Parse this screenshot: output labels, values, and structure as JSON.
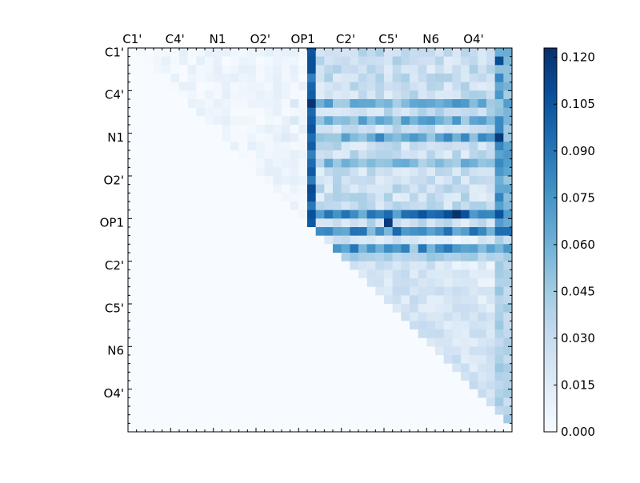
{
  "chart_data": {
    "type": "heatmap",
    "title": "",
    "xlabel": "",
    "ylabel": "",
    "n_cells": 45,
    "x_tick_labels": [
      "C1'",
      "C4'",
      "N1",
      "O2'",
      "OP1",
      "C2'",
      "C5'",
      "N6",
      "O4'"
    ],
    "y_tick_labels": [
      "C1'",
      "C4'",
      "N1",
      "O2'",
      "OP1",
      "C2'",
      "C5'",
      "N6",
      "O4'"
    ],
    "tick_label_indices": [
      0,
      5,
      10,
      15,
      20,
      25,
      30,
      35,
      40
    ],
    "colorbar": {
      "ticks": [
        "0.000",
        "0.015",
        "0.030",
        "0.045",
        "0.060",
        "0.075",
        "0.090",
        "0.105",
        "0.120"
      ],
      "range": [
        0.0,
        0.123
      ],
      "colormap": "Blues",
      "low_color": "#f7fbff",
      "high_color": "#08306b"
    },
    "triangle": "upper",
    "grid": false,
    "legend": "colorbar-right",
    "hot_rows": [
      {
        "row": 6,
        "strength": 0.07
      },
      {
        "row": 8,
        "strength": 0.07
      },
      {
        "row": 10,
        "strength": 0.075
      },
      {
        "row": 13,
        "strength": 0.06
      },
      {
        "row": 19,
        "strength": 0.1
      },
      {
        "row": 21,
        "strength": 0.09
      }
    ],
    "hot_cols": [
      {
        "col": 21,
        "strength": 0.11
      },
      {
        "col": 43,
        "strength": 0.08
      },
      {
        "col": 44,
        "strength": 0.07
      }
    ],
    "max_cells": [
      {
        "row": 19,
        "col": 38,
        "value": 0.122
      },
      {
        "row": 20,
        "col": 30,
        "value": 0.118
      },
      {
        "row": 10,
        "col": 43,
        "value": 0.118
      },
      {
        "row": 1,
        "col": 43,
        "value": 0.11
      },
      {
        "row": 6,
        "col": 21,
        "value": 0.121
      }
    ]
  }
}
